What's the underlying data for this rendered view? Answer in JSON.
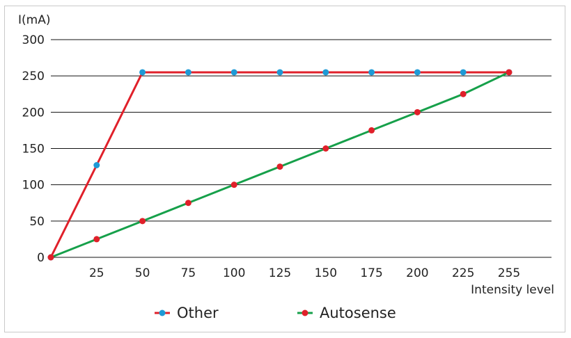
{
  "chart_data": {
    "type": "line",
    "ylabel": "I(mA)",
    "xlabel": "Intensity level",
    "y_ticks": [
      0,
      50,
      100,
      150,
      200,
      250,
      300
    ],
    "ylim": [
      0,
      300
    ],
    "x_ticks": [
      "25",
      "50",
      "75",
      "100",
      "125",
      "150",
      "175",
      "200",
      "225",
      "255"
    ],
    "grid": "horizontal",
    "legend_position": "bottom-center",
    "series": [
      {
        "name": "Other",
        "line_color": "#e0202a",
        "marker_color": "#1f9ad6",
        "x": [
          0,
          25,
          50,
          75,
          100,
          125,
          150,
          175,
          200,
          225,
          255
        ],
        "values": [
          0,
          127,
          255,
          255,
          255,
          255,
          255,
          255,
          255,
          255,
          255
        ]
      },
      {
        "name": "Autosense",
        "line_color": "#16a04a",
        "marker_color": "#e0202a",
        "x": [
          0,
          25,
          50,
          75,
          100,
          125,
          150,
          175,
          200,
          225,
          255
        ],
        "values": [
          0,
          25,
          50,
          75,
          100,
          125,
          150,
          175,
          200,
          225,
          255
        ]
      }
    ]
  }
}
